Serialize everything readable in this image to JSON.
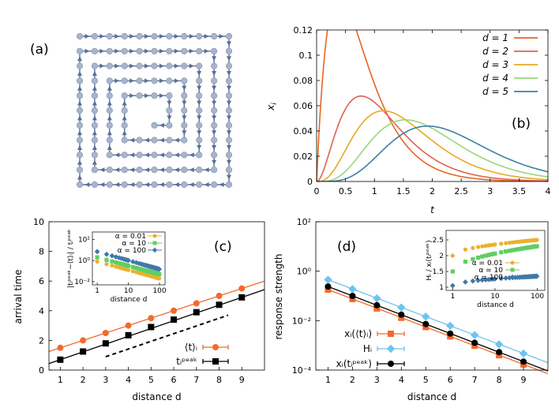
{
  "panels": {
    "a": {
      "label": "(a)"
    },
    "b": {
      "label": "(b)"
    },
    "c": {
      "label": "(c)"
    },
    "d": {
      "label": "(d)"
    }
  },
  "chart_data": [
    {
      "id": "a",
      "type": "diagram",
      "title": "(a)",
      "description": "Square spiral lattice path of nodes connected by arrows",
      "grid_size": 11,
      "colors": {
        "node": "#a7b4cc",
        "edge": "#5a6f96"
      }
    },
    {
      "id": "b",
      "type": "line",
      "title": "(b)",
      "xlabel": "t",
      "ylabel": "x_i",
      "xlim": [
        0,
        4
      ],
      "ylim": [
        0,
        0.12
      ],
      "xticks": [
        "0",
        "0.5",
        "1",
        "1.5",
        "2",
        "2.5",
        "3",
        "3.5",
        "4"
      ],
      "yticks": [
        "0",
        "0.02",
        "0.04",
        "0.06",
        "0.08",
        "0.1",
        "0.12"
      ],
      "legend_position": "top-right",
      "series": [
        {
          "name": "d = 1",
          "color": "#e8651f",
          "d": 1
        },
        {
          "name": "d = 2",
          "color": "#e0614f",
          "d": 2
        },
        {
          "name": "d = 3",
          "color": "#e8a825",
          "d": 3
        },
        {
          "name": "d = 4",
          "color": "#9ad67a",
          "d": 4
        },
        {
          "name": "d = 5",
          "color": "#3a7fa3",
          "d": 5
        }
      ]
    },
    {
      "id": "c",
      "type": "line",
      "title": "(c)",
      "xlabel": "distance d",
      "ylabel": "arrival time",
      "xlim": [
        0.5,
        10
      ],
      "ylim": [
        0,
        10
      ],
      "xticks": [
        "1",
        "2",
        "3",
        "4",
        "5",
        "6",
        "7",
        "8",
        "9"
      ],
      "yticks": [
        "0",
        "2",
        "4",
        "6",
        "8",
        "10"
      ],
      "legend_position": "bottom-right",
      "series": [
        {
          "name": "⟨t⟩ᵢ",
          "color": "#f26a2e",
          "marker": "circle",
          "x": [
            1,
            2,
            3,
            4,
            5,
            6,
            7,
            8,
            9
          ],
          "y": [
            1.5,
            2.0,
            2.5,
            3.0,
            3.5,
            4.0,
            4.5,
            5.0,
            5.5
          ]
        },
        {
          "name": "tᵢᵖᵉᵃᵏ",
          "color": "#000000",
          "marker": "square",
          "x": [
            1,
            2,
            3,
            4,
            5,
            6,
            7,
            8,
            9
          ],
          "y": [
            0.7,
            1.25,
            1.8,
            2.35,
            2.9,
            3.4,
            3.9,
            4.4,
            4.9
          ]
        }
      ],
      "reference_line": {
        "x": [
          3,
          8.4
        ],
        "y": [
          0.9,
          3.7
        ],
        "style": "dashed"
      },
      "inset": {
        "xlabel": "distance d",
        "ylabel": "|tᵢᵖᵉᵃᵏ−⟨t⟩ᵢ| / tᵢᵖᵉᵃᵏ",
        "xticks": [
          "1",
          "10",
          "100"
        ],
        "yticks": [
          "10⁻²",
          "10⁰",
          "10²"
        ],
        "xscale": "log",
        "yscale": "log",
        "xlim": [
          0.7,
          150
        ],
        "ylim": [
          0.005,
          500
        ],
        "series": [
          {
            "name": "α = 0.01",
            "color": "#e8b230",
            "marker": "circle",
            "start": 0.8,
            "end": 0.02
          },
          {
            "name": "α = 10",
            "color": "#5fcf62",
            "marker": "square",
            "start": 2.0,
            "end": 0.05
          },
          {
            "name": "α = 100",
            "color": "#3f78a8",
            "marker": "diamond",
            "start": 7.0,
            "end": 0.15
          }
        ]
      }
    },
    {
      "id": "d",
      "type": "line",
      "title": "(d)",
      "xlabel": "distance d",
      "ylabel": "response strength",
      "xscale_type": "linear",
      "yscale": "log",
      "xlim": [
        0.5,
        10
      ],
      "ylim": [
        0.0001,
        100
      ],
      "xticks": [
        "1",
        "2",
        "3",
        "4",
        "5",
        "6",
        "7",
        "8",
        "9"
      ],
      "yticks": [
        "10⁻⁴",
        "10⁻²",
        "10⁰",
        "10²"
      ],
      "legend_position": "bottom-left",
      "series": [
        {
          "name": "xᵢ(⟨t⟩ᵢ)",
          "color": "#f26a2e",
          "marker": "square",
          "x": [
            1,
            2,
            3,
            4,
            5,
            6,
            7,
            8,
            9
          ],
          "y": [
            0.18,
            0.075,
            0.031,
            0.013,
            0.0055,
            0.0023,
            0.00097,
            0.0004,
            0.00017
          ]
        },
        {
          "name": "Hᵢ",
          "color": "#6ec4ef",
          "marker": "diamond",
          "x": [
            1,
            2,
            3,
            4,
            5,
            6,
            7,
            8,
            9
          ],
          "y": [
            0.45,
            0.19,
            0.08,
            0.034,
            0.0145,
            0.0062,
            0.0026,
            0.0011,
            0.00047
          ]
        },
        {
          "name": "xᵢ(tᵢᵖᵉᵃᵏ)",
          "color": "#000000",
          "marker": "circle",
          "x": [
            1,
            2,
            3,
            4,
            5,
            6,
            7,
            8,
            9
          ],
          "y": [
            0.24,
            0.1,
            0.042,
            0.0175,
            0.0073,
            0.003,
            0.00127,
            0.00053,
            0.00022
          ]
        }
      ],
      "inset": {
        "xlabel": "distance d",
        "ylabel": "Hᵢ / xᵢ(tᵢᵖᵉᵃᵏ)",
        "xticks": [
          "1",
          "10",
          "100"
        ],
        "yticks": [
          "1",
          "1.5",
          "2",
          "2.5"
        ],
        "xscale": "log",
        "xlim": [
          0.7,
          150
        ],
        "ylim": [
          0.9,
          2.8
        ],
        "series": [
          {
            "name": "α = 0.01",
            "color": "#e8b230",
            "marker": "circle",
            "start": 2.0,
            "end": 2.5
          },
          {
            "name": "α = 10",
            "color": "#5fcf62",
            "marker": "square",
            "start": 1.5,
            "end": 2.3
          },
          {
            "name": "α = 100",
            "color": "#3f78a8",
            "marker": "diamond",
            "start": 1.05,
            "end": 1.35
          }
        ]
      }
    }
  ]
}
